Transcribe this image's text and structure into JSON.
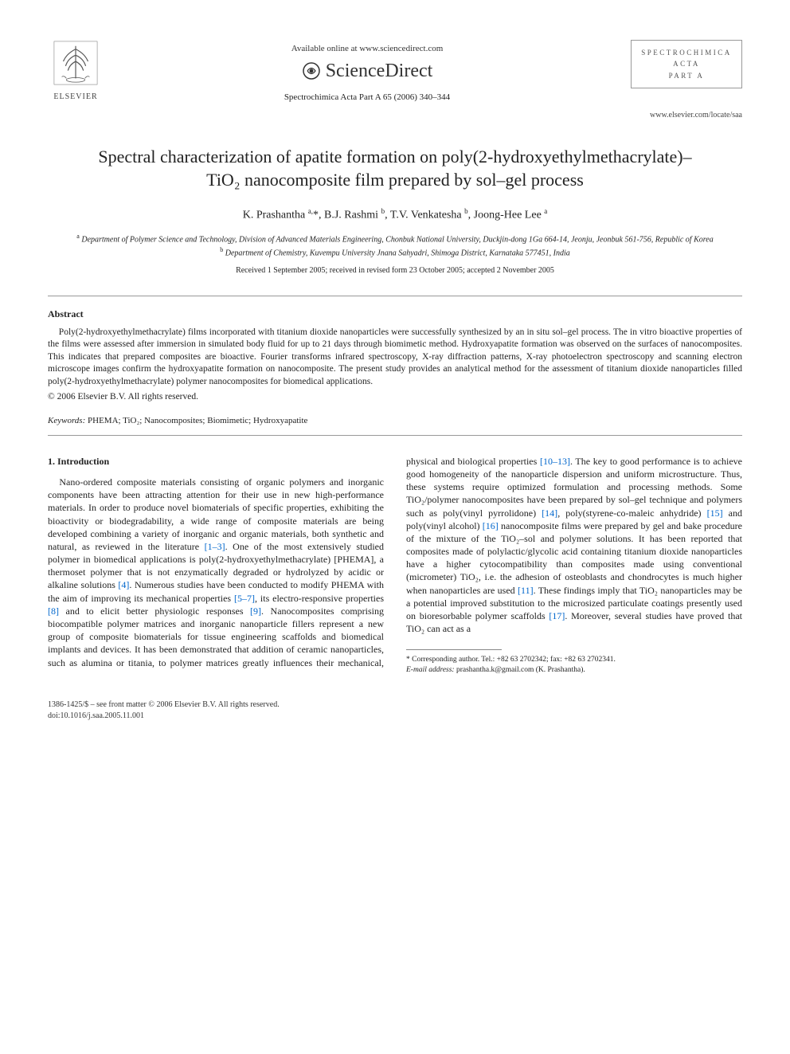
{
  "header": {
    "publisher_name": "ELSEVIER",
    "available_online": "Available online at www.sciencedirect.com",
    "sciencedirect": "ScienceDirect",
    "journal_ref": "Spectrochimica Acta Part A 65 (2006) 340–344",
    "journal_box_line1": "SPECTROCHIMICA",
    "journal_box_line2": "ACTA",
    "journal_box_line3": "PART A",
    "journal_url": "www.elsevier.com/locate/saa"
  },
  "article": {
    "title": "Spectral characterization of apatite formation on poly(2-hydroxyethylmethacrylate)–TiO₂ nanocomposite film prepared by sol–gel process",
    "authors_html": "K. Prashantha <sup>a,</sup>*, B.J. Rashmi <sup>b</sup>, T.V. Venkatesha <sup>b</sup>, Joong-Hee Lee <sup>a</sup>",
    "affiliation_a": "Department of Polymer Science and Technology, Division of Advanced Materials Engineering, Chonbuk National University, Duckjin-dong 1Ga 664-14, Jeonju, Jeonbuk 561-756, Republic of Korea",
    "affiliation_b": "Department of Chemistry, Kuvempu University Jnana Sahyadri, Shimoga District, Karnataka 577451, India",
    "dates": "Received 1 September 2005; received in revised form 23 October 2005; accepted 2 November 2005"
  },
  "abstract": {
    "heading": "Abstract",
    "text": "Poly(2-hydroxyethylmethacrylate) films incorporated with titanium dioxide nanoparticles were successfully synthesized by an in situ sol–gel process. The in vitro bioactive properties of the films were assessed after immersion in simulated body fluid for up to 21 days through biomimetic method. Hydroxyapatite formation was observed on the surfaces of nanocomposites. This indicates that prepared composites are bioactive. Fourier transforms infrared spectroscopy, X-ray diffraction patterns, X-ray photoelectron spectroscopy and scanning electron microscope images confirm the hydroxyapatite formation on nanocomposite. The present study provides an analytical method for the assessment of titanium dioxide nanoparticles filled poly(2-hydroxyethylmethacrylate) polymer nanocomposites for biomedical applications.",
    "copyright": "© 2006 Elsevier B.V. All rights reserved.",
    "keywords_label": "Keywords:",
    "keywords": "PHEMA; TiO₂; Nanocomposites; Biomimetic; Hydroxyapatite"
  },
  "body": {
    "section1_heading": "1. Introduction",
    "para1_pre": "Nano-ordered composite materials consisting of organic polymers and inorganic components have been attracting attention for their use in new high-performance materials. In order to produce novel biomaterials of specific properties, exhibiting the bioactivity or biodegradability, a wide range of composite materials are being developed combining a variety of inorganic and organic materials, both synthetic and natural, as reviewed in the literature ",
    "ref1": "[1–3]",
    "para1_mid1": ". One of the most extensively studied polymer in biomedical applications is poly(2-hydroxyethylmethacrylate) [PHEMA], a thermoset polymer that is not enzymatically degraded or hydrolyzed by acidic or alkaline solutions ",
    "ref2": "[4]",
    "para1_mid2": ". Numerous studies have been conducted to modify PHEMA with the aim of improving its mechanical properties ",
    "ref3": "[5–7]",
    "para1_mid3": ", its electro-responsive properties ",
    "ref4": "[8]",
    "para1_mid4": " and to elicit better physiologic responses ",
    "ref5": "[9]",
    "para1_post": ". Nanocomposites comprising biocompatible polymer matrices and inorganic nanoparticle fillers",
    "para2_pre": "represent a new group of composite biomaterials for tissue engineering scaffolds and biomedical implants and devices. It has been demonstrated that addition of ceramic nanoparticles, such as alumina or titania, to polymer matrices greatly influences their mechanical, physical and biological properties ",
    "ref6": "[10–13]",
    "para2_mid1": ". The key to good performance is to achieve good homogeneity of the nanoparticle dispersion and uniform microstructure. Thus, these systems require optimized formulation and processing methods. Some TiO₂/polymer nanocomposites have been prepared by sol–gel technique and polymers such as poly(vinyl pyrrolidone) ",
    "ref7": "[14]",
    "para2_mid2": ", poly(styrene-co-maleic anhydride) ",
    "ref8": "[15]",
    "para2_mid3": " and poly(vinyl alcohol) ",
    "ref9": "[16]",
    "para2_mid4": " nanocomposite films were prepared by gel and bake procedure of the mixture of the TiO₂–sol and polymer solutions. It has been reported that composites made of polylactic/glycolic acid containing titanium dioxide nanoparticles have a higher cytocompatibility than composites made using conventional (micrometer) TiO₂, i.e. the adhesion of osteoblasts and chondrocytes is much higher when nanoparticles are used ",
    "ref10": "[11]",
    "para2_mid5": ". These findings imply that TiO₂ nanoparticles may be a potential improved substitution to the microsized particulate coatings presently used on bioresorbable polymer scaffolds ",
    "ref11": "[17]",
    "para2_post": ". Moreover, several studies have proved that TiO₂ can act as a"
  },
  "footnote": {
    "corresponding": "* Corresponding author. Tel.: +82 63 2702342; fax: +82 63 2702341.",
    "email_label": "E-mail address:",
    "email": "prashantha.k@gmail.com (K. Prashantha)."
  },
  "footer": {
    "issn": "1386-1425/$ – see front matter © 2006 Elsevier B.V. All rights reserved.",
    "doi": "doi:10.1016/j.saa.2005.11.001"
  },
  "colors": {
    "link": "#0066cc",
    "text": "#222222",
    "rule": "#999999"
  }
}
